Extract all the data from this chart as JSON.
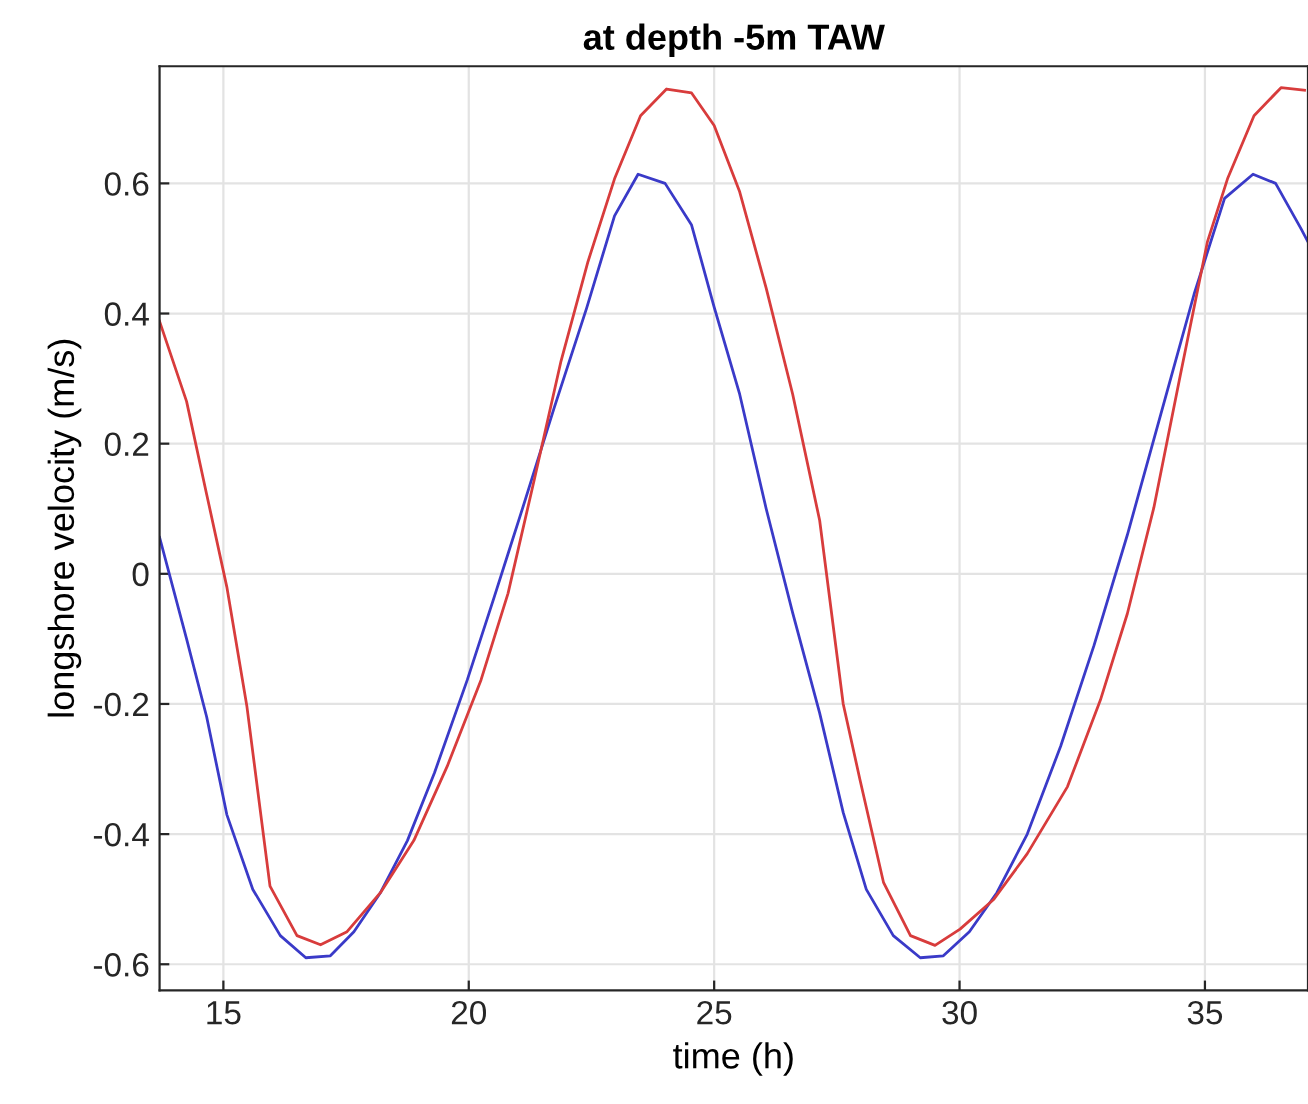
{
  "chart_data": {
    "type": "line",
    "title": "at depth -5m TAW",
    "xlabel": "time (h)",
    "ylabel": "longshore velocity (m/s)",
    "xlim": [
      13.7,
      37.1
    ],
    "ylim": [
      -0.64,
      0.78
    ],
    "xticks": [
      15,
      20,
      25,
      30,
      35
    ],
    "yticks": [
      -0.6,
      -0.4,
      -0.2,
      0,
      0.2,
      0.4,
      0.6
    ],
    "grid": true,
    "line_style": "solid",
    "marker": "none",
    "series": [
      {
        "color": "#3a3ac8",
        "x": [
          13.7,
          14.25,
          14.66,
          15.07,
          15.6,
          16.16,
          16.68,
          17.18,
          17.66,
          18.2,
          18.75,
          19.3,
          19.97,
          20.5,
          21.06,
          21.74,
          22.4,
          22.97,
          23.45,
          24.0,
          24.54,
          25.0,
          25.52,
          26.06,
          26.6,
          27.15,
          27.63,
          28.1,
          28.65,
          29.2,
          29.67,
          30.2,
          30.76,
          31.38,
          32.06,
          32.74,
          33.42,
          34.1,
          34.78,
          35.4,
          35.98,
          36.44,
          36.96,
          37.1
        ],
        "values": [
          0.056,
          -0.1,
          -0.22,
          -0.37,
          -0.485,
          -0.556,
          -0.59,
          -0.587,
          -0.55,
          -0.49,
          -0.41,
          -0.306,
          -0.163,
          -0.04,
          0.092,
          0.255,
          0.408,
          0.55,
          0.614,
          0.6,
          0.536,
          0.41,
          0.276,
          0.1,
          -0.06,
          -0.214,
          -0.367,
          -0.485,
          -0.556,
          -0.59,
          -0.587,
          -0.55,
          -0.49,
          -0.4,
          -0.265,
          -0.11,
          0.06,
          0.245,
          0.43,
          0.577,
          0.614,
          0.6,
          0.53,
          0.51
        ]
      },
      {
        "color": "#d83c3c",
        "x": [
          13.7,
          14.25,
          14.66,
          15.07,
          15.48,
          15.95,
          16.5,
          16.98,
          17.52,
          18.2,
          18.88,
          19.56,
          20.25,
          20.8,
          21.33,
          21.88,
          22.43,
          22.97,
          23.5,
          24.03,
          24.54,
          25.0,
          25.52,
          26.06,
          26.6,
          27.15,
          27.63,
          27.97,
          28.45,
          29.0,
          29.5,
          30.01,
          30.7,
          31.38,
          32.2,
          32.87,
          33.42,
          33.96,
          34.5,
          35.05,
          35.46,
          36.0,
          36.55,
          37.03
        ],
        "values": [
          0.388,
          0.265,
          0.122,
          -0.02,
          -0.204,
          -0.48,
          -0.556,
          -0.57,
          -0.55,
          -0.49,
          -0.41,
          -0.296,
          -0.163,
          -0.03,
          0.143,
          0.327,
          0.48,
          0.607,
          0.704,
          0.745,
          0.739,
          0.689,
          0.587,
          0.439,
          0.276,
          0.082,
          -0.2,
          -0.316,
          -0.474,
          -0.556,
          -0.571,
          -0.546,
          -0.5,
          -0.43,
          -0.327,
          -0.194,
          -0.061,
          0.102,
          0.306,
          0.51,
          0.607,
          0.704,
          0.747,
          0.743
        ]
      }
    ]
  }
}
